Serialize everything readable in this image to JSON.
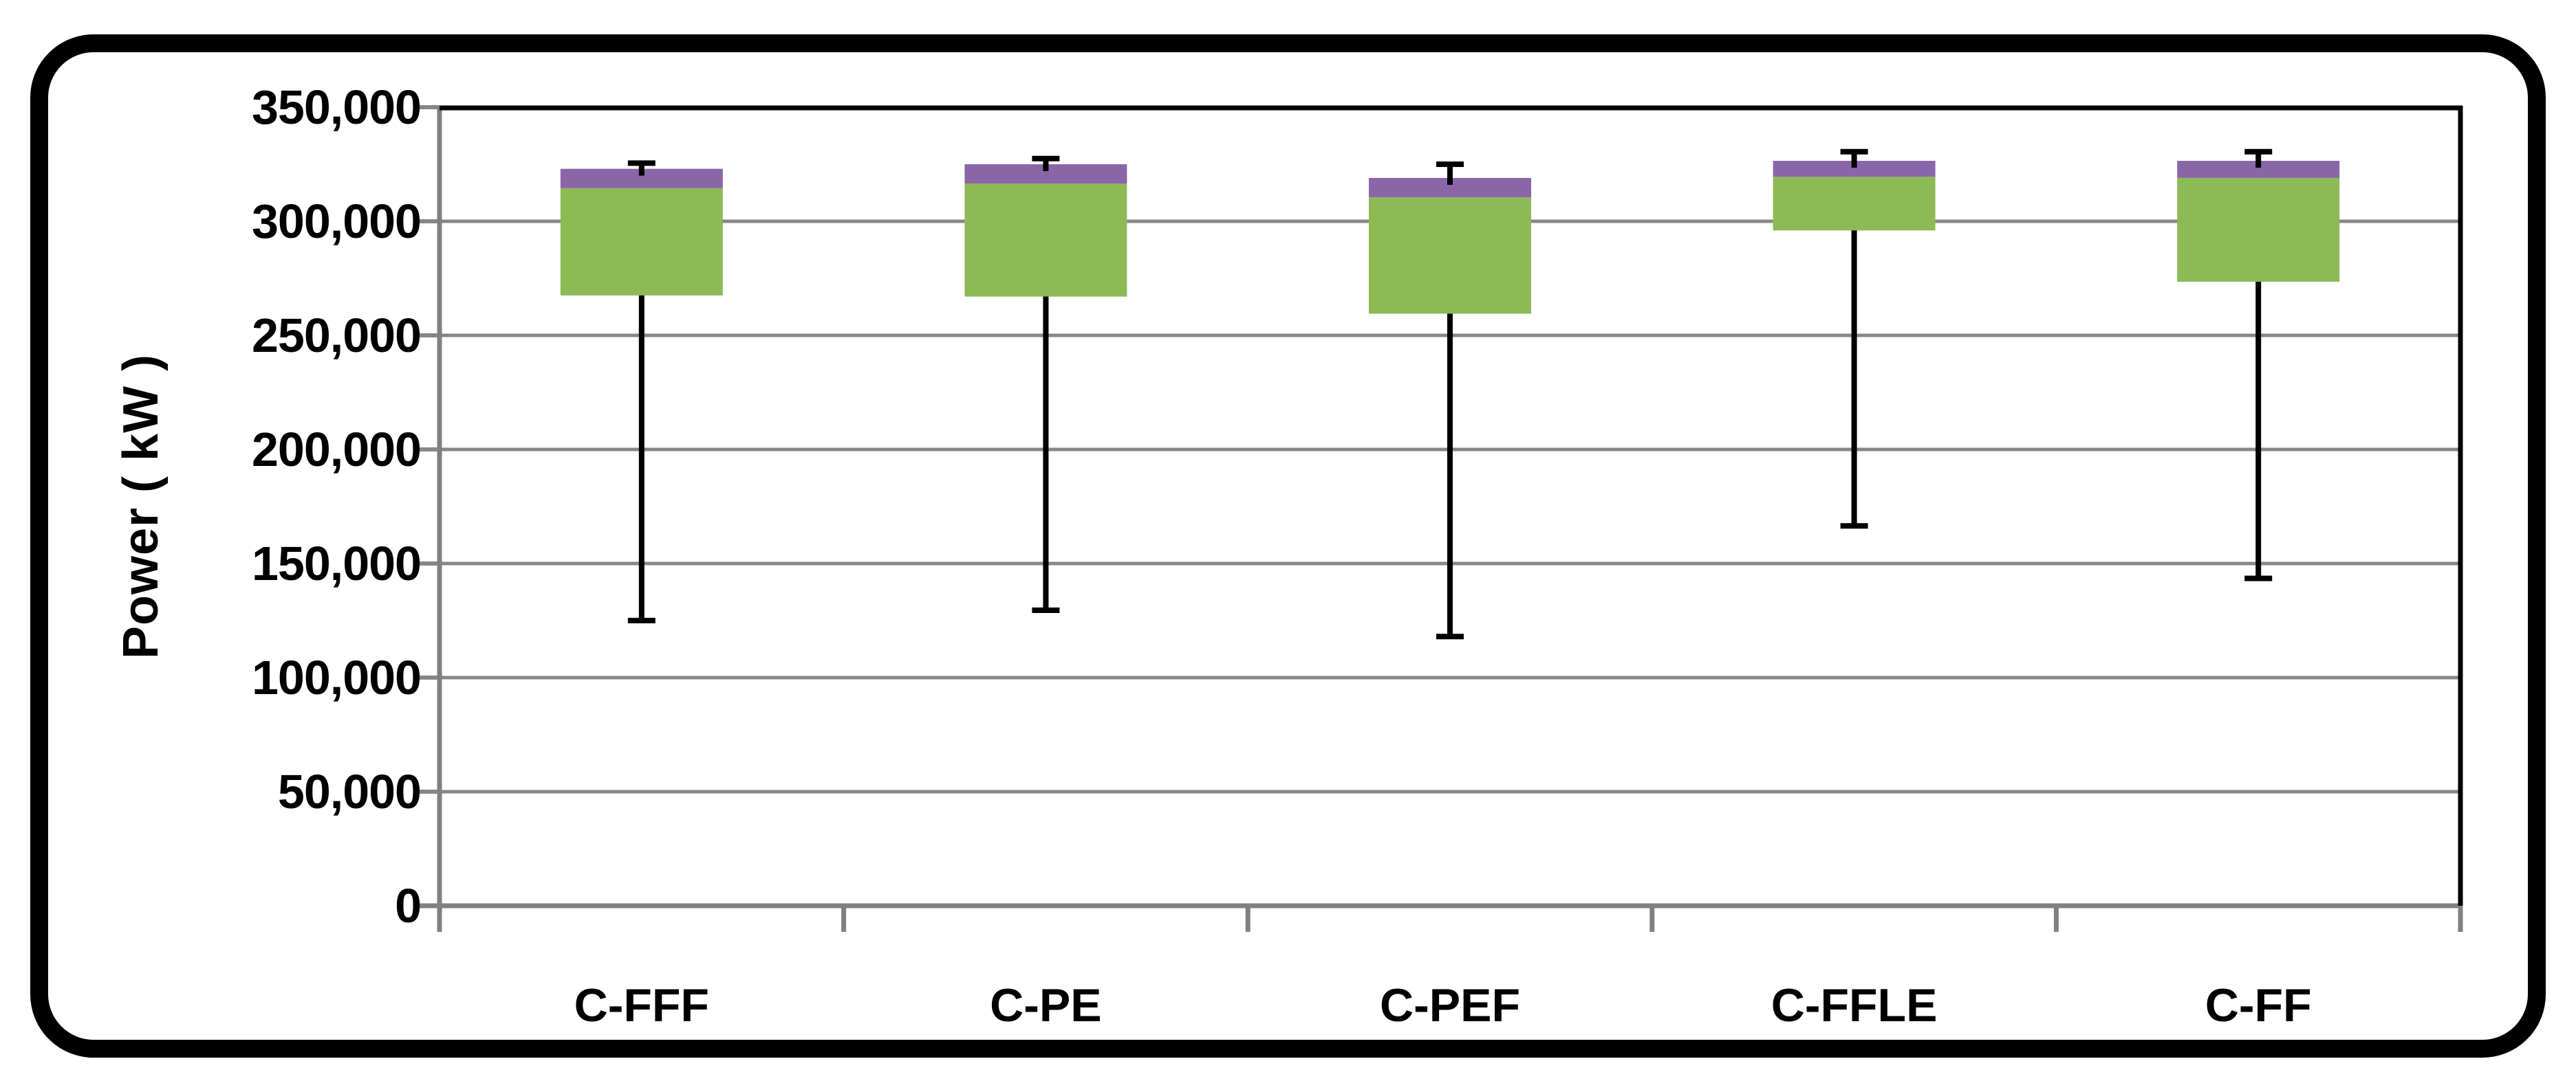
{
  "chart_data": {
    "type": "box",
    "title": "",
    "xlabel": "",
    "ylabel": "Power ( kW )",
    "ylim": [
      0,
      350000
    ],
    "grid": "horizontal",
    "legend": null,
    "ytick_values": [
      0,
      50000,
      100000,
      150000,
      200000,
      250000,
      300000,
      350000
    ],
    "ytick_labels": [
      "0",
      "50,000",
      "100,000",
      "150,000",
      "200,000",
      "250,000",
      "300,000",
      "350,000"
    ],
    "categories": [
      "C-FFF",
      "C-PE",
      "C-PEF",
      "C-FFLE",
      "C-FF"
    ],
    "boxes": [
      {
        "category": "C-FFF",
        "whisker_low": 125000,
        "q1": 267500,
        "median": 314500,
        "q3": 323000,
        "whisker_high": 325500
      },
      {
        "category": "C-PE",
        "whisker_low": 129500,
        "q1": 267000,
        "median": 316500,
        "q3": 325000,
        "whisker_high": 327500
      },
      {
        "category": "C-PEF",
        "whisker_low": 118000,
        "q1": 259500,
        "median": 310500,
        "q3": 319000,
        "whisker_high": 325000
      },
      {
        "category": "C-FFLE",
        "whisker_low": 166500,
        "q1": 296000,
        "median": 319500,
        "q3": 326500,
        "whisker_high": 330500
      },
      {
        "category": "C-FF",
        "whisker_low": 143500,
        "q1": 273500,
        "median": 319000,
        "q3": 326500,
        "whisker_high": 330500
      }
    ],
    "segment_colors": {
      "q1_to_median": "green",
      "median_to_q3": "purple"
    }
  },
  "colors": {
    "box_green": "#8CBA55",
    "box_purple": "#8A66A9",
    "gridline_gray": "#878787",
    "axis_gray": "#808080",
    "plot_border_black": "#000000",
    "whisker_black": "#000000",
    "frame_black": "#000000",
    "background": "#FFFFFF",
    "text_black": "#000000"
  }
}
